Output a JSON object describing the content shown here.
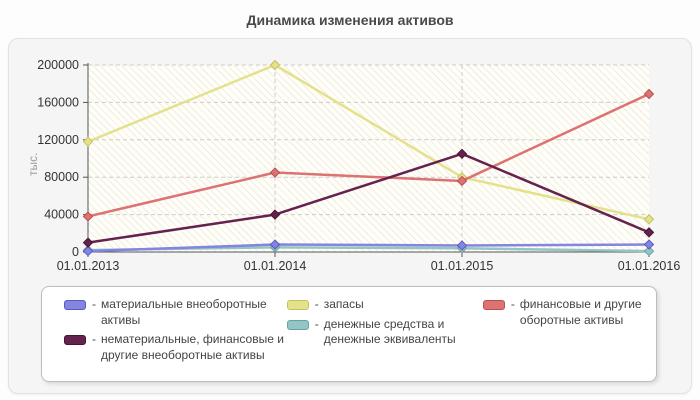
{
  "title": "Динамика изменения активов",
  "legend_dash": "-",
  "chart_data": {
    "type": "line",
    "categories": [
      "01.01.2013",
      "01.01.2014",
      "01.01.2015",
      "01.01.2016"
    ],
    "series": [
      {
        "name": "материальные внеоборотные активы",
        "values": [
          1000,
          8000,
          7000,
          8000
        ],
        "color": "#8484e1",
        "border": "#5a5ac4"
      },
      {
        "name": "нематериальные, финансовые и другие внеоборотные активы",
        "values": [
          10000,
          40000,
          105000,
          21000
        ],
        "color": "#65224f",
        "border": "#43152f"
      },
      {
        "name": "запасы",
        "values": [
          118000,
          200000,
          80000,
          35000
        ],
        "color": "#e4e18c",
        "border": "#c6c160"
      },
      {
        "name": "денежные средства и денежные эквиваленты",
        "values": [
          2000,
          5000,
          4000,
          1000
        ],
        "color": "#92c5c3",
        "border": "#67a3a1"
      },
      {
        "name": "финансовые и другие оборотные активы",
        "values": [
          38000,
          85000,
          76000,
          169000
        ],
        "color": "#dd7272",
        "border": "#bb4f4f"
      }
    ],
    "title": "Динамика изменения активов",
    "xlabel": "",
    "ylabel": "тыс.",
    "ylim": [
      0,
      200000
    ],
    "yticks": [
      0,
      40000,
      80000,
      120000,
      160000,
      200000
    ],
    "grid": "dashed",
    "legend_position": "bottom",
    "marker": "diamond"
  }
}
